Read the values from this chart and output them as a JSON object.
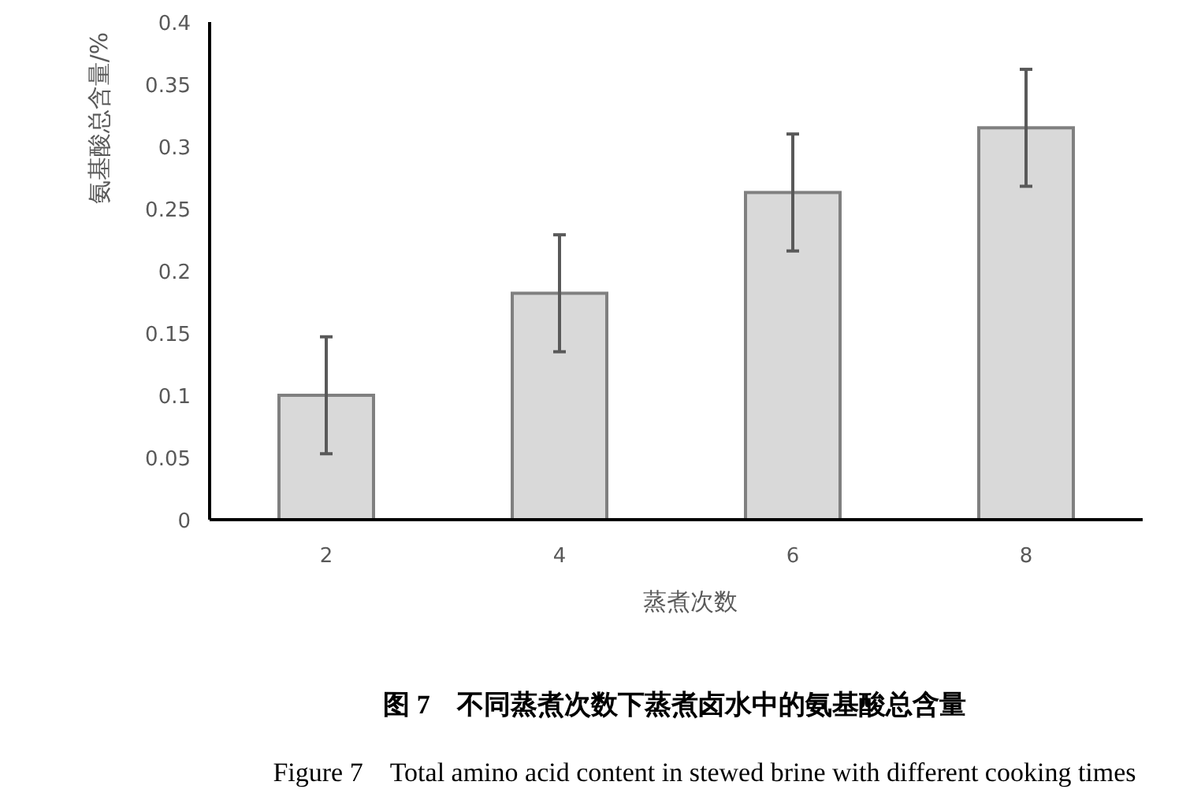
{
  "chart_data": {
    "type": "bar",
    "title": "图 7　不同蒸煮次数下蒸煮卤水中的氨基酸总含量",
    "subtitle": "Figure 7　Total amino acid content in stewed brine with different cooking times",
    "xlabel": "蒸煮次数",
    "ylabel": "氨基酸总含量/%",
    "categories": [
      "2",
      "4",
      "6",
      "8"
    ],
    "values": [
      0.1,
      0.182,
      0.263,
      0.315
    ],
    "errors": [
      0.047,
      0.047,
      0.047,
      0.047
    ],
    "color": "#d9d9d9",
    "ylim": [
      0,
      0.4
    ],
    "yticks": [
      0,
      0.05,
      0.1,
      0.15,
      0.2,
      0.25,
      0.3,
      0.35,
      0.4
    ],
    "grid": false
  }
}
